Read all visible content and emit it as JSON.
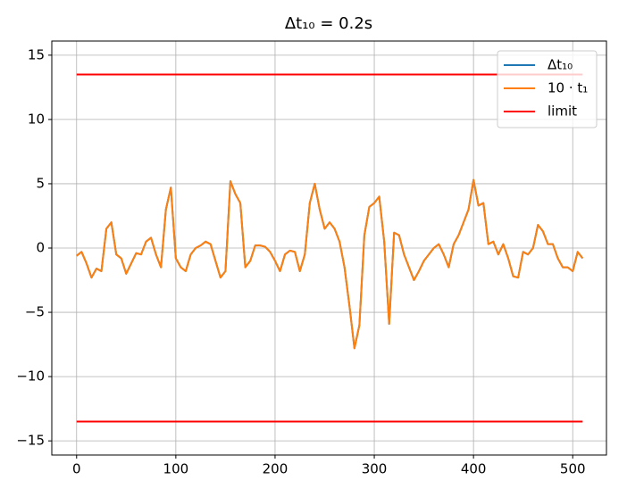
{
  "chart_data": {
    "type": "line",
    "title": "Δt₁₀ = 0.2s",
    "x": [
      0,
      5,
      10,
      15,
      20,
      25,
      30,
      35,
      40,
      45,
      50,
      55,
      60,
      65,
      70,
      75,
      80,
      85,
      90,
      95,
      100,
      105,
      110,
      115,
      120,
      125,
      130,
      135,
      140,
      145,
      150,
      155,
      160,
      165,
      170,
      175,
      180,
      185,
      190,
      195,
      200,
      205,
      210,
      215,
      220,
      225,
      230,
      235,
      240,
      245,
      250,
      255,
      260,
      265,
      270,
      275,
      280,
      285,
      290,
      295,
      300,
      305,
      310,
      315,
      320,
      325,
      330,
      335,
      340,
      345,
      350,
      355,
      360,
      365,
      370,
      375,
      380,
      385,
      390,
      395,
      400,
      405,
      410,
      415,
      420,
      425,
      430,
      435,
      440,
      445,
      450,
      455,
      460,
      465,
      470,
      475,
      480,
      485,
      490,
      495,
      500,
      505,
      510
    ],
    "series": [
      {
        "name": "Δt₁₀",
        "color": "#1f77b4",
        "values": [
          -0.6,
          -0.3,
          -1.2,
          -2.3,
          -1.6,
          -1.8,
          1.5,
          2,
          -0.5,
          -0.8,
          -2,
          -1.2,
          -0.4,
          -0.5,
          0.5,
          0.8,
          -0.5,
          -1.5,
          3,
          4.7,
          -0.8,
          -1.5,
          -1.8,
          -0.5,
          0,
          0.2,
          0.5,
          0.3,
          -1,
          -2.3,
          -1.8,
          5.2,
          4.2,
          3.5,
          -1.5,
          -1,
          0.2,
          0.2,
          0.1,
          -0.3,
          -1,
          -1.8,
          -0.5,
          -0.2,
          -0.3,
          -1.8,
          -0.5,
          3.5,
          5,
          3,
          1.5,
          2,
          1.5,
          0.5,
          -1.5,
          -4.5,
          -7.8,
          -6,
          1,
          3.2,
          3.5,
          4,
          0.5,
          -5.9,
          1.2,
          1,
          -0.5,
          -1.5,
          -2.5,
          -1.8,
          -1,
          -0.5,
          0,
          0.3,
          -0.5,
          -1.5,
          0.3,
          1,
          2,
          3,
          5.3,
          3.3,
          3.5,
          0.3,
          0.5,
          -0.5,
          0.3,
          -0.8,
          -2.2,
          -2.3,
          -0.3,
          -0.5,
          0,
          1.8,
          1.3,
          0.3,
          0.3,
          -0.8,
          -1.5,
          -1.5,
          -1.8,
          -0.3,
          -0.8
        ]
      },
      {
        "name": "10 · t₁",
        "color": "#ff7f0e",
        "values": [
          -0.6,
          -0.3,
          -1.2,
          -2.3,
          -1.6,
          -1.8,
          1.5,
          2,
          -0.5,
          -0.8,
          -2,
          -1.2,
          -0.4,
          -0.5,
          0.5,
          0.8,
          -0.5,
          -1.5,
          3,
          4.7,
          -0.8,
          -1.5,
          -1.8,
          -0.5,
          0,
          0.2,
          0.5,
          0.3,
          -1,
          -2.3,
          -1.8,
          5.2,
          4.2,
          3.5,
          -1.5,
          -1,
          0.2,
          0.2,
          0.1,
          -0.3,
          -1,
          -1.8,
          -0.5,
          -0.2,
          -0.3,
          -1.8,
          -0.5,
          3.5,
          5,
          3,
          1.5,
          2,
          1.5,
          0.5,
          -1.5,
          -4.5,
          -7.8,
          -6,
          1,
          3.2,
          3.5,
          4,
          0.5,
          -5.9,
          1.2,
          1,
          -0.5,
          -1.5,
          -2.5,
          -1.8,
          -1,
          -0.5,
          0,
          0.3,
          -0.5,
          -1.5,
          0.3,
          1,
          2,
          3,
          5.3,
          3.3,
          3.5,
          0.3,
          0.5,
          -0.5,
          0.3,
          -0.8,
          -2.2,
          -2.3,
          -0.3,
          -0.5,
          0,
          1.8,
          1.3,
          0.3,
          0.3,
          -0.8,
          -1.5,
          -1.5,
          -1.8,
          -0.3,
          -0.8
        ]
      },
      {
        "name": "limit",
        "color": "#ff0000",
        "x": [
          0,
          510,
          510,
          0,
          510
        ],
        "values": [
          13.5,
          13.5,
          null,
          -13.5,
          -13.5
        ]
      }
    ],
    "xlim": [
      -25,
      534
    ],
    "ylim": [
      -16.1,
      16.1
    ],
    "xticks": [
      0,
      100,
      200,
      300,
      400,
      500
    ],
    "yticks": [
      {
        "value": -15,
        "label": "−15"
      },
      {
        "value": -10,
        "label": "−10"
      },
      {
        "value": -5,
        "label": "−5"
      },
      0,
      5,
      10,
      15
    ],
    "grid": true,
    "legend": "upper right"
  }
}
